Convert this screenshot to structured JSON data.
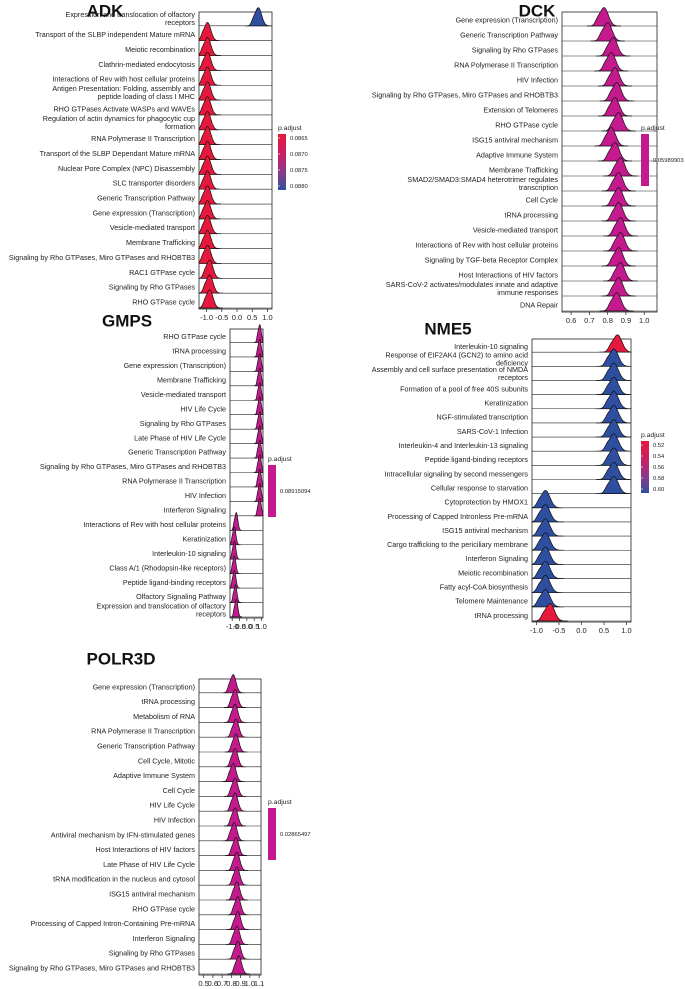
{
  "figure": "GSEA ridge plots",
  "chart_data": [
    {
      "type": "ridge",
      "title": "ADK",
      "xlim": [
        -1.25,
        1.15
      ],
      "xticks": [
        -1.0,
        -0.5,
        0.0,
        0.5,
        1.0
      ],
      "xtick_labels": [
        "-1.0",
        "-0.5",
        "0.0",
        "0.5",
        "1.0"
      ],
      "legend": {
        "title": "p.adjust",
        "type": "gradient",
        "colors": [
          "#e6193c",
          "#c71f64",
          "#8a3a8c",
          "#2e4fa0"
        ],
        "labels": [
          "0.0865",
          "0.0870",
          "0.0875",
          "0.0880"
        ]
      },
      "series": [
        {
          "term": "Expression and translocation of olfactory receptors",
          "center": 0.7,
          "p": 0.0881
        },
        {
          "term": "Transport of the SLBP independent Mature mRNA",
          "center": -0.97,
          "p": 0.0863
        },
        {
          "term": "Meiotic recombination",
          "center": -0.97,
          "p": 0.0863
        },
        {
          "term": "Clathrin-mediated endocytosis",
          "center": -0.97,
          "p": 0.0863
        },
        {
          "term": "Interactions of Rev with host cellular proteins",
          "center": -0.97,
          "p": 0.0863
        },
        {
          "term": "Antigen Presentation: Folding, assembly and peptide loading of class I MHC",
          "center": -0.97,
          "p": 0.0863
        },
        {
          "term": "RHO GTPases Activate WASPs and WAVEs",
          "center": -0.97,
          "p": 0.0863
        },
        {
          "term": "Regulation of actin dynamics for phagocytic cup formation",
          "center": -0.97,
          "p": 0.0863
        },
        {
          "term": "RNA Polymerase II Transcription",
          "center": -0.97,
          "p": 0.0863
        },
        {
          "term": "Transport of the SLBP Dependant Mature mRNA",
          "center": -0.97,
          "p": 0.0863
        },
        {
          "term": "Nuclear Pore Complex (NPC) Disassembly",
          "center": -0.97,
          "p": 0.0863
        },
        {
          "term": "SLC transporter disorders",
          "center": -0.97,
          "p": 0.0863
        },
        {
          "term": "Generic Transcription Pathway",
          "center": -0.97,
          "p": 0.0863
        },
        {
          "term": "Gene expression (Transcription)",
          "center": -0.97,
          "p": 0.0863
        },
        {
          "term": "Vesicle-mediated transport",
          "center": -0.97,
          "p": 0.0863
        },
        {
          "term": "Membrane Trafficking",
          "center": -0.97,
          "p": 0.0863
        },
        {
          "term": "Signaling by Rho GTPases, Miro GTPases and RHOBTB3",
          "center": -0.97,
          "p": 0.0863
        },
        {
          "term": "RAC1 GTPase cycle",
          "center": -0.9,
          "p": 0.0863
        },
        {
          "term": "Signaling by Rho GTPases",
          "center": -0.9,
          "p": 0.0863
        },
        {
          "term": "RHO GTPase cycle",
          "center": -0.9,
          "p": 0.0863
        }
      ]
    },
    {
      "type": "ridge",
      "title": "DCK",
      "xlim": [
        0.55,
        1.07
      ],
      "xticks": [
        0.6,
        0.7,
        0.8,
        0.9,
        1.0
      ],
      "xtick_labels": [
        "0.6",
        "0.7",
        "0.8",
        "0.9",
        "1.0"
      ],
      "legend": {
        "title": "p.adjust",
        "type": "single",
        "colors": [
          "#c41a8e"
        ],
        "labels": [
          "0.05989903"
        ]
      },
      "series": [
        {
          "term": "Gene expression (Transcription)",
          "center": 0.78,
          "p": 0.05989903
        },
        {
          "term": "Generic Transcription Pathway",
          "center": 0.8,
          "p": 0.05989903
        },
        {
          "term": "Signaling by Rho GTPases",
          "center": 0.83,
          "p": 0.05989903
        },
        {
          "term": "RNA Polymerase II Transcription",
          "center": 0.82,
          "p": 0.05989903
        },
        {
          "term": "HIV Infection",
          "center": 0.84,
          "p": 0.05989903
        },
        {
          "term": "Signaling by Rho GTPases, Miro GTPases and RHOBTB3",
          "center": 0.85,
          "p": 0.05989903
        },
        {
          "term": "Extension of Telomeres",
          "center": 0.84,
          "p": 0.05989903
        },
        {
          "term": "RHO GTPase cycle",
          "center": 0.86,
          "p": 0.05989903
        },
        {
          "term": "ISG15 antiviral mechanism",
          "center": 0.82,
          "p": 0.05989903
        },
        {
          "term": "Adaptive Immune System",
          "center": 0.84,
          "p": 0.05989903
        },
        {
          "term": "Membrane Trafficking",
          "center": 0.87,
          "p": 0.05989903
        },
        {
          "term": "SMAD2/SMAD3:SMAD4 heterotrimer regulates transcription",
          "center": 0.86,
          "p": 0.05989903
        },
        {
          "term": "Cell Cycle",
          "center": 0.86,
          "p": 0.05989903
        },
        {
          "term": "tRNA processing",
          "center": 0.86,
          "p": 0.05989903
        },
        {
          "term": "Vesicle-mediated transport",
          "center": 0.87,
          "p": 0.05989903
        },
        {
          "term": "Interactions of Rev with host cellular proteins",
          "center": 0.87,
          "p": 0.05989903
        },
        {
          "term": "Signaling by TGF-beta Receptor Complex",
          "center": 0.86,
          "p": 0.05989903
        },
        {
          "term": "Host Interactions of HIV factors",
          "center": 0.87,
          "p": 0.05989903
        },
        {
          "term": "SARS-CoV-2 activates/modulates innate and adaptive immune responses",
          "center": 0.86,
          "p": 0.05989903
        },
        {
          "term": "DNA Repair",
          "center": 0.85,
          "p": 0.05989903
        }
      ]
    },
    {
      "type": "ridge",
      "title": "GMPS",
      "xlim": [
        -1.15,
        1.1
      ],
      "xticks": [
        -1.0,
        -0.5,
        0.0,
        0.5,
        1.0
      ],
      "xtick_labels": [
        "-1.0",
        "-0.5",
        "0.0",
        "0.5",
        "1.0"
      ],
      "legend": {
        "title": "p.adjust",
        "type": "single",
        "colors": [
          "#c41a8e"
        ],
        "labels": [
          "0.08915094"
        ]
      },
      "series": [
        {
          "term": "RHO GTPase cycle",
          "center": 0.88,
          "p": 0.08915094
        },
        {
          "term": "tRNA processing",
          "center": 0.88,
          "p": 0.08915094
        },
        {
          "term": "Gene expression (Transcription)",
          "center": 0.88,
          "p": 0.08915094
        },
        {
          "term": "Membrane Trafficking",
          "center": 0.88,
          "p": 0.08915094
        },
        {
          "term": "Vesicle-mediated transport",
          "center": 0.88,
          "p": 0.08915094
        },
        {
          "term": "HIV Life Cycle",
          "center": 0.88,
          "p": 0.08915094
        },
        {
          "term": "Signaling by Rho GTPases",
          "center": 0.88,
          "p": 0.08915094
        },
        {
          "term": "Late Phase of HIV Life Cycle",
          "center": 0.88,
          "p": 0.08915094
        },
        {
          "term": "Generic Transcription Pathway",
          "center": 0.88,
          "p": 0.08915094
        },
        {
          "term": "Signaling by Rho GTPases, Miro GTPases and RHOBTB3",
          "center": 0.88,
          "p": 0.08915094
        },
        {
          "term": "RNA Polymerase II Transcription",
          "center": 0.88,
          "p": 0.08915094
        },
        {
          "term": "HIV Infection",
          "center": 0.88,
          "p": 0.08915094
        },
        {
          "term": "Interferon Signaling",
          "center": 0.88,
          "p": 0.08915094
        },
        {
          "term": "Interactions of Rev with host cellular proteins",
          "center": -0.72,
          "p": 0.08915094
        },
        {
          "term": "Keratinization",
          "center": -0.85,
          "p": 0.08915094
        },
        {
          "term": "Interleukin-10 signaling",
          "center": -0.85,
          "p": 0.08915094
        },
        {
          "term": "Class A/1 (Rhodopsin-like receptors)",
          "center": -0.85,
          "p": 0.08915094
        },
        {
          "term": "Peptide ligand-binding receptors",
          "center": -0.85,
          "p": 0.08915094
        },
        {
          "term": "Olfactory Signaling Pathway",
          "center": -0.78,
          "p": 0.08915094
        },
        {
          "term": "Expression and translocation of olfactory receptors",
          "center": -0.72,
          "p": 0.08915094
        }
      ]
    },
    {
      "type": "ridge",
      "title": "NME5",
      "xlim": [
        -1.1,
        1.1
      ],
      "xticks": [
        -1.0,
        -0.5,
        0.0,
        0.5,
        1.0
      ],
      "xtick_labels": [
        "-1.0",
        "-0.5",
        "0.0",
        "0.5",
        "1.0"
      ],
      "legend": {
        "title": "p.adjust",
        "type": "gradient",
        "colors": [
          "#e6193c",
          "#c71f64",
          "#8a3a8c",
          "#2e4fa0"
        ],
        "labels": [
          "0.52",
          "0.54",
          "0.56",
          "0.58",
          "0.60"
        ]
      },
      "series": [
        {
          "term": "Interleukin-10 signaling",
          "center": 0.8,
          "p": 0.515
        },
        {
          "term": "Response of EIF2AK4 (GCN2) to amino acid deficiency",
          "center": 0.72,
          "p": 0.605
        },
        {
          "term": "Assembly and cell surface presentation of NMDA receptors",
          "center": 0.72,
          "p": 0.605
        },
        {
          "term": "Formation of a pool of free 40S subunits",
          "center": 0.72,
          "p": 0.605
        },
        {
          "term": "Keratinization",
          "center": 0.72,
          "p": 0.605
        },
        {
          "term": "NGF-stimulated transcription",
          "center": 0.72,
          "p": 0.605
        },
        {
          "term": "SARS-CoV-1 Infection",
          "center": 0.72,
          "p": 0.605
        },
        {
          "term": "Interleukin-4 and Interleukin-13 signaling",
          "center": 0.72,
          "p": 0.605
        },
        {
          "term": "Peptide ligand-binding receptors",
          "center": 0.72,
          "p": 0.605
        },
        {
          "term": "Intracellular signaling by second messengers",
          "center": 0.72,
          "p": 0.605
        },
        {
          "term": "Cellular response to starvation",
          "center": 0.72,
          "p": 0.605
        },
        {
          "term": "Cytoprotection by HMOX1",
          "center": -0.8,
          "p": 0.605
        },
        {
          "term": "Processing of Capped Intronless Pre-mRNA",
          "center": -0.8,
          "p": 0.605
        },
        {
          "term": "ISG15 antiviral mechanism",
          "center": -0.8,
          "p": 0.605
        },
        {
          "term": "Cargo trafficking to the periciliary membrane",
          "center": -0.8,
          "p": 0.605
        },
        {
          "term": "Interferon Signaling",
          "center": -0.8,
          "p": 0.605
        },
        {
          "term": "Meiotic recombination",
          "center": -0.8,
          "p": 0.605
        },
        {
          "term": "Fatty acyl-CoA biosynthesis",
          "center": -0.8,
          "p": 0.605
        },
        {
          "term": "Telomere Maintenance",
          "center": -0.8,
          "p": 0.605
        },
        {
          "term": "tRNA processing",
          "center": -0.7,
          "p": 0.515
        }
      ]
    },
    {
      "type": "ridge",
      "title": "POLR3D",
      "xlim": [
        0.45,
        1.12
      ],
      "xticks": [
        0.5,
        0.6,
        0.7,
        0.8,
        0.9,
        1.0,
        1.1
      ],
      "xtick_labels": [
        "0.5",
        "0.6",
        "0.7",
        "0.8",
        "0.9",
        "1.0",
        "1.1"
      ],
      "legend": {
        "title": "p.adjust",
        "type": "single",
        "colors": [
          "#c41a8e"
        ],
        "labels": [
          "0.02865497"
        ]
      },
      "series": [
        {
          "term": "Gene expression (Transcription)",
          "center": 0.82,
          "p": 0.02865497
        },
        {
          "term": "tRNA processing",
          "center": 0.84,
          "p": 0.02865497
        },
        {
          "term": "Metabolism of RNA",
          "center": 0.84,
          "p": 0.02865497
        },
        {
          "term": "RNA Polymerase II Transcription",
          "center": 0.85,
          "p": 0.02865497
        },
        {
          "term": "Generic Transcription Pathway",
          "center": 0.85,
          "p": 0.02865497
        },
        {
          "term": "Cell Cycle, Mitotic",
          "center": 0.84,
          "p": 0.02865497
        },
        {
          "term": "Adaptive Immune System",
          "center": 0.82,
          "p": 0.02865497
        },
        {
          "term": "Cell Cycle",
          "center": 0.84,
          "p": 0.02865497
        },
        {
          "term": "HIV Life Cycle",
          "center": 0.84,
          "p": 0.02865497
        },
        {
          "term": "HIV Infection",
          "center": 0.84,
          "p": 0.02865497
        },
        {
          "term": "Antiviral mechanism by IFN-stimulated genes",
          "center": 0.83,
          "p": 0.02865497
        },
        {
          "term": "Host Interactions of HIV factors",
          "center": 0.85,
          "p": 0.02865497
        },
        {
          "term": "Late Phase of HIV Life Cycle",
          "center": 0.86,
          "p": 0.02865497
        },
        {
          "term": "tRNA modification in the nucleus and cytosol",
          "center": 0.86,
          "p": 0.02865497
        },
        {
          "term": "ISG15 antiviral mechanism",
          "center": 0.86,
          "p": 0.02865497
        },
        {
          "term": "RHO GTPase cycle",
          "center": 0.87,
          "p": 0.02865497
        },
        {
          "term": "Processing of Capped Intron-Containing Pre-mRNA",
          "center": 0.87,
          "p": 0.02865497
        },
        {
          "term": "Interferon Signaling",
          "center": 0.86,
          "p": 0.02865497
        },
        {
          "term": "Signaling by Rho GTPases",
          "center": 0.87,
          "p": 0.02865497
        },
        {
          "term": "Signaling by Rho GTPases, Miro GTPases and RHOBTB3",
          "center": 0.88,
          "p": 0.02865497
        }
      ]
    }
  ]
}
